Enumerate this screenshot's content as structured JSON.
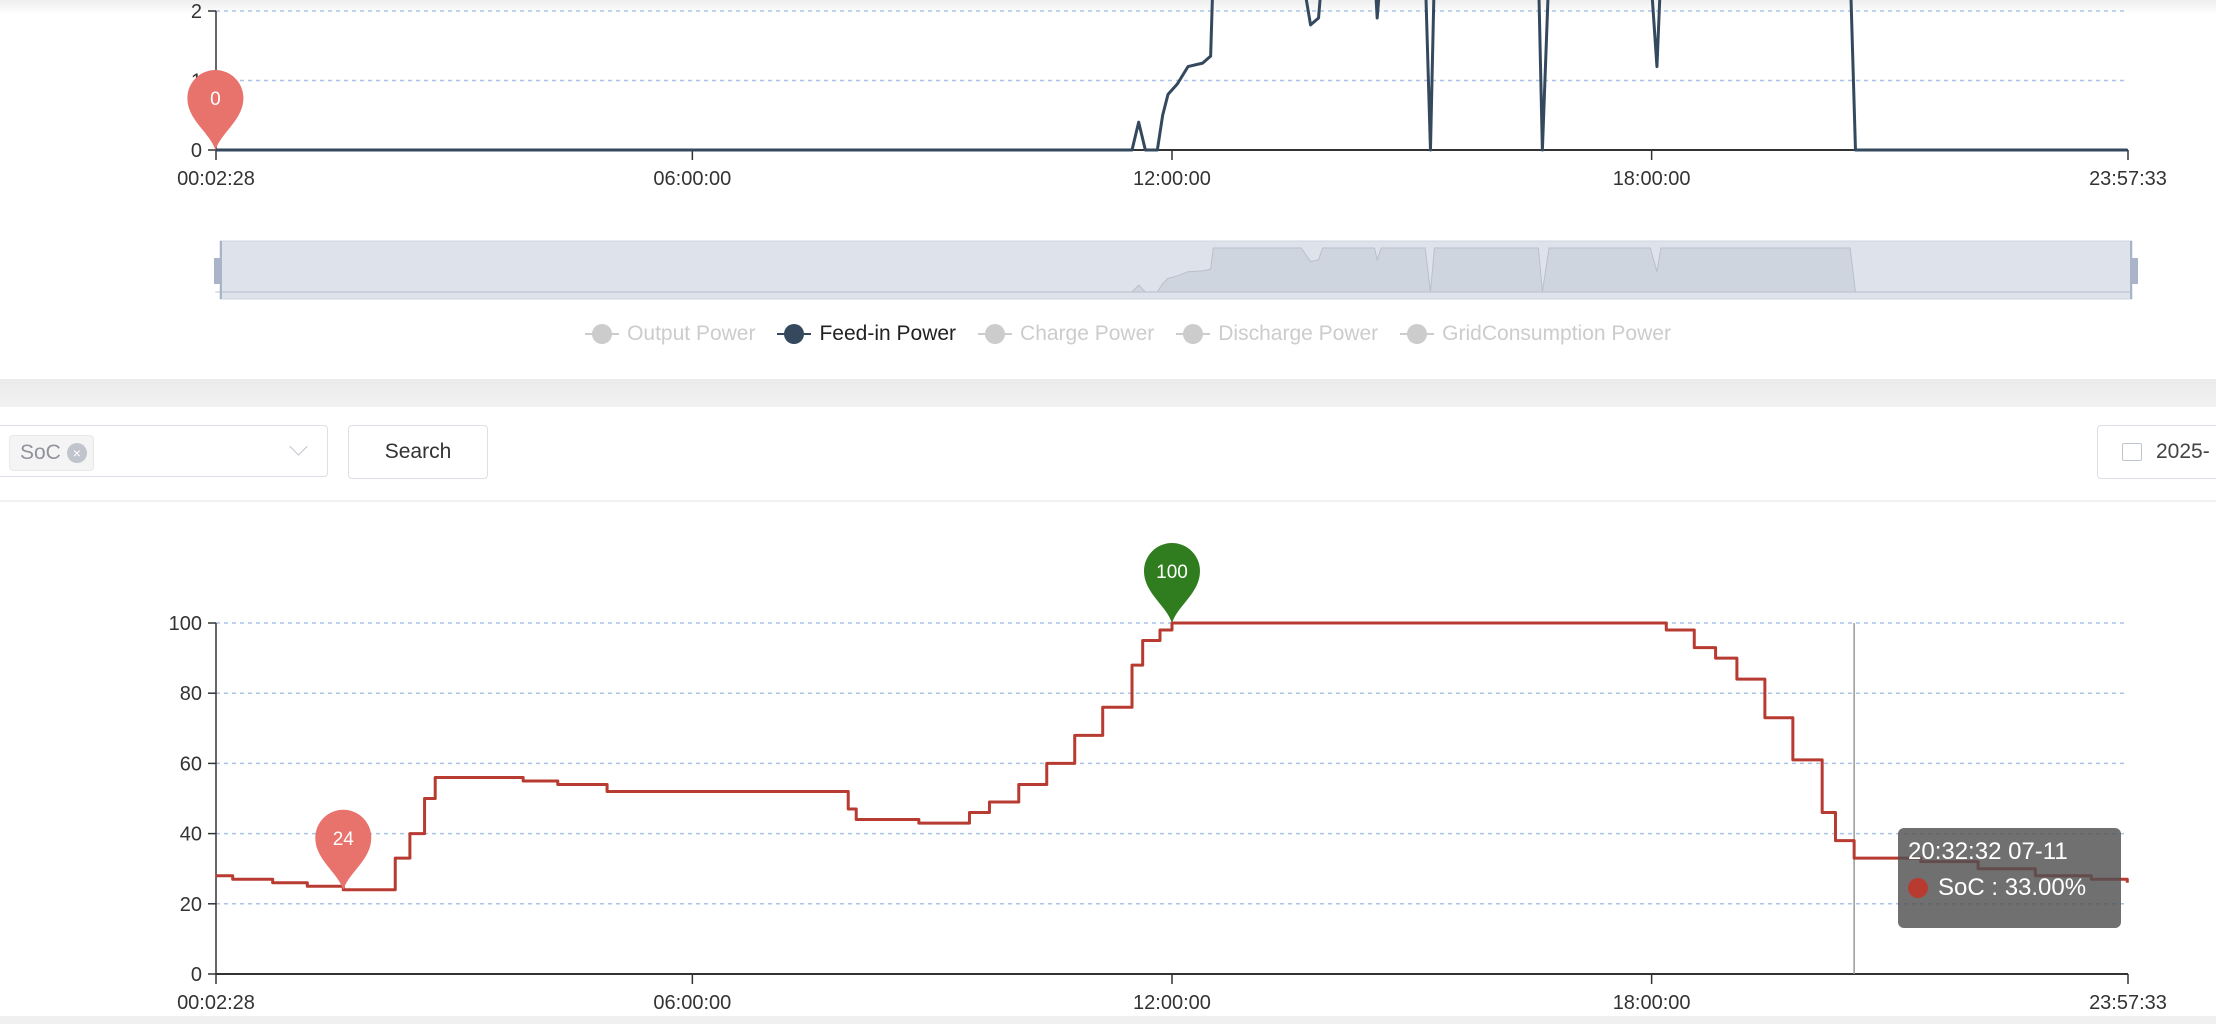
{
  "power_chart": {
    "chart_data": {
      "type": "line",
      "series": [
        {
          "name": "Feed-in Power",
          "color": "#34495e",
          "x": [
            "00:02",
            "11:30",
            "11:35",
            "11:40",
            "11:49",
            "11:53",
            "11:57",
            "12:04",
            "12:12",
            "12:23",
            "12:29",
            "12:31",
            "13:37",
            "13:44",
            "13:50",
            "13:53",
            "14:32",
            "14:34",
            "14:37",
            "15:10",
            "15:14",
            "15:17",
            "16:35",
            "16:38",
            "16:43",
            "17:59",
            "18:04",
            "18:07",
            "20:29",
            "20:33",
            "23:57"
          ],
          "y": [
            0,
            0,
            0.4,
            0,
            0,
            0.5,
            0.8,
            0.95,
            1.2,
            1.25,
            1.35,
            2.6,
            2.6,
            1.8,
            1.9,
            2.6,
            2.6,
            1.9,
            2.6,
            2.6,
            0,
            2.6,
            2.6,
            0,
            2.6,
            2.6,
            1.2,
            2.6,
            2.6,
            0,
            0
          ]
        }
      ],
      "x_ticks": [
        "00:02:28",
        "06:00:00",
        "12:00:00",
        "18:00:00",
        "23:57:33"
      ],
      "y_ticks": [
        "0",
        "1",
        "2"
      ],
      "ylim": [
        0,
        2
      ],
      "grid": true,
      "mark_points": [
        {
          "label": "0",
          "x": "00:02",
          "y": 0,
          "color": "#e8736c"
        }
      ]
    },
    "legend": [
      {
        "label": "Output Power",
        "active": false
      },
      {
        "label": "Feed-in Power",
        "active": true
      },
      {
        "label": "Charge Power",
        "active": false
      },
      {
        "label": "Discharge Power",
        "active": false
      },
      {
        "label": "GridConsumption Power",
        "active": false
      }
    ]
  },
  "toolbar": {
    "selected_tag": "SoC",
    "search_label": "Search",
    "date_value": "2025-"
  },
  "soc_chart": {
    "chart_data": {
      "type": "line",
      "series": [
        {
          "name": "SoC",
          "color": "#b83b32",
          "x": [
            "00:02",
            "00:15",
            "00:45",
            "01:11",
            "01:38",
            "02:05",
            "02:17",
            "02:28",
            "02:39",
            "02:47",
            "03:26",
            "03:53",
            "04:19",
            "04:56",
            "07:47",
            "07:57",
            "08:03",
            "08:45",
            "08:50",
            "09:10",
            "09:28",
            "09:43",
            "10:05",
            "10:26",
            "10:47",
            "11:08",
            "11:30",
            "11:38",
            "11:51",
            "12:00",
            "18:00",
            "18:11",
            "18:32",
            "18:48",
            "19:04",
            "19:25",
            "19:46",
            "20:08",
            "20:18",
            "20:32",
            "21:00",
            "21:22",
            "22:05",
            "22:48",
            "23:30",
            "23:57"
          ],
          "y": [
            28,
            27,
            26,
            25,
            24,
            24,
            33,
            40,
            50,
            56,
            56,
            55,
            54,
            52,
            52,
            47,
            44,
            44,
            43,
            43,
            46,
            49,
            54,
            60,
            68,
            76,
            88,
            95,
            98,
            100,
            100,
            98,
            93,
            90,
            84,
            73,
            61,
            46,
            38,
            33,
            33,
            32,
            30,
            28,
            27,
            26
          ]
        }
      ],
      "x_ticks": [
        "00:02:28",
        "06:00:00",
        "12:00:00",
        "18:00:00",
        "23:57:33"
      ],
      "y_ticks": [
        "0",
        "20",
        "40",
        "60",
        "80",
        "100"
      ],
      "ylim": [
        0,
        100
      ],
      "grid": true,
      "mark_points": [
        {
          "label": "24",
          "x": "01:38",
          "y": 24,
          "color": "#e8736c"
        },
        {
          "label": "100",
          "x": "12:00",
          "y": 100,
          "color": "#2f7d1f"
        }
      ]
    },
    "tooltip": {
      "time": "20:32:32 07-11",
      "text": "SoC : 33.00%",
      "x": "20:32"
    }
  }
}
